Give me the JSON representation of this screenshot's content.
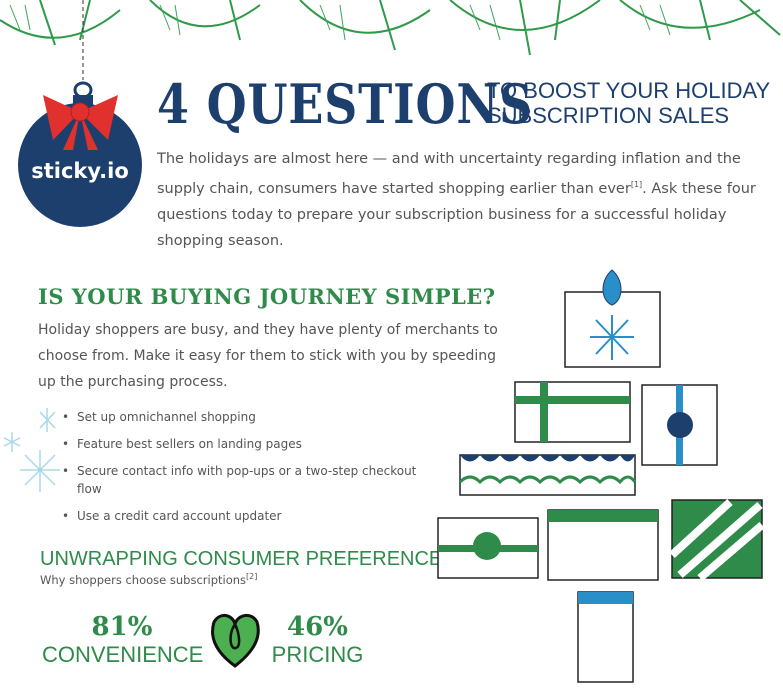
{
  "header": {
    "title_number_word": "4 QUESTIONS",
    "title_rest_line1": "TO BOOST YOUR HOLIDAY",
    "title_rest_line2": "SUBSCRIPTION SALES"
  },
  "logo": {
    "text": "sticky.io"
  },
  "intro": {
    "text": "The holidays are almost here — and with uncertainty regarding inflation and the supply chain, consumers have started shopping earlier than ever",
    "footnote": "[1]",
    "end": ".",
    " text2": "",
    "closing": "Ask these four questions today to prepare your subscription business for a successful holiday shopping season."
  },
  "question1": {
    "heading": "IS YOUR BUYING JOURNEY SIMPLE?",
    "body": "Holiday shoppers are busy, and they have plenty of merchants to choose from. Make it easy for them to stick with you by speeding up the purchasing process.",
    "bullets": [
      "Set up omnichannel shopping",
      "Feature best sellers on landing pages",
      "Secure contact info with pop-ups or a two-step checkout flow",
      "Use a credit card account updater"
    ]
  },
  "preferences": {
    "heading": "UNWRAPPING CONSUMER PREFERENCES:",
    "subheading": "Why shoppers choose subscriptions",
    "footnote": "[2]",
    "stats": [
      {
        "percent": "81%",
        "label": "CONVENIENCE"
      },
      {
        "percent": "46%",
        "label": "PRICING"
      }
    ]
  },
  "colors": {
    "navy": "#1d3f6e",
    "green": "#2e8b4a",
    "red": "#e0312f",
    "blue": "#2a8fc8"
  }
}
